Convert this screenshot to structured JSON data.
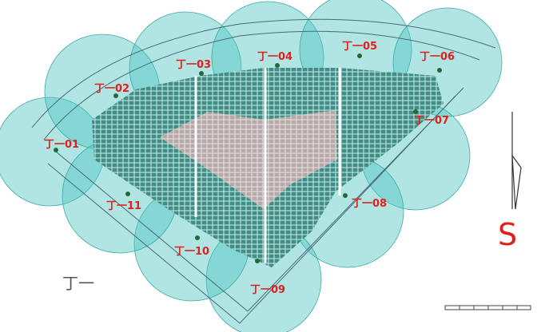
{
  "nodes": [
    {
      "label": "丁一01"
    },
    {
      "label": "丁一02"
    },
    {
      "label": "丁一03"
    },
    {
      "label": "丁一04"
    },
    {
      "label": "丁一05"
    },
    {
      "label": "丁一06"
    },
    {
      "label": "丁一07"
    },
    {
      "label": "丁一08"
    },
    {
      "label": "丁一09"
    },
    {
      "label": "丁一10"
    },
    {
      "label": "丁一11"
    }
  ],
  "legend_title": "丁一",
  "direction": "S"
}
